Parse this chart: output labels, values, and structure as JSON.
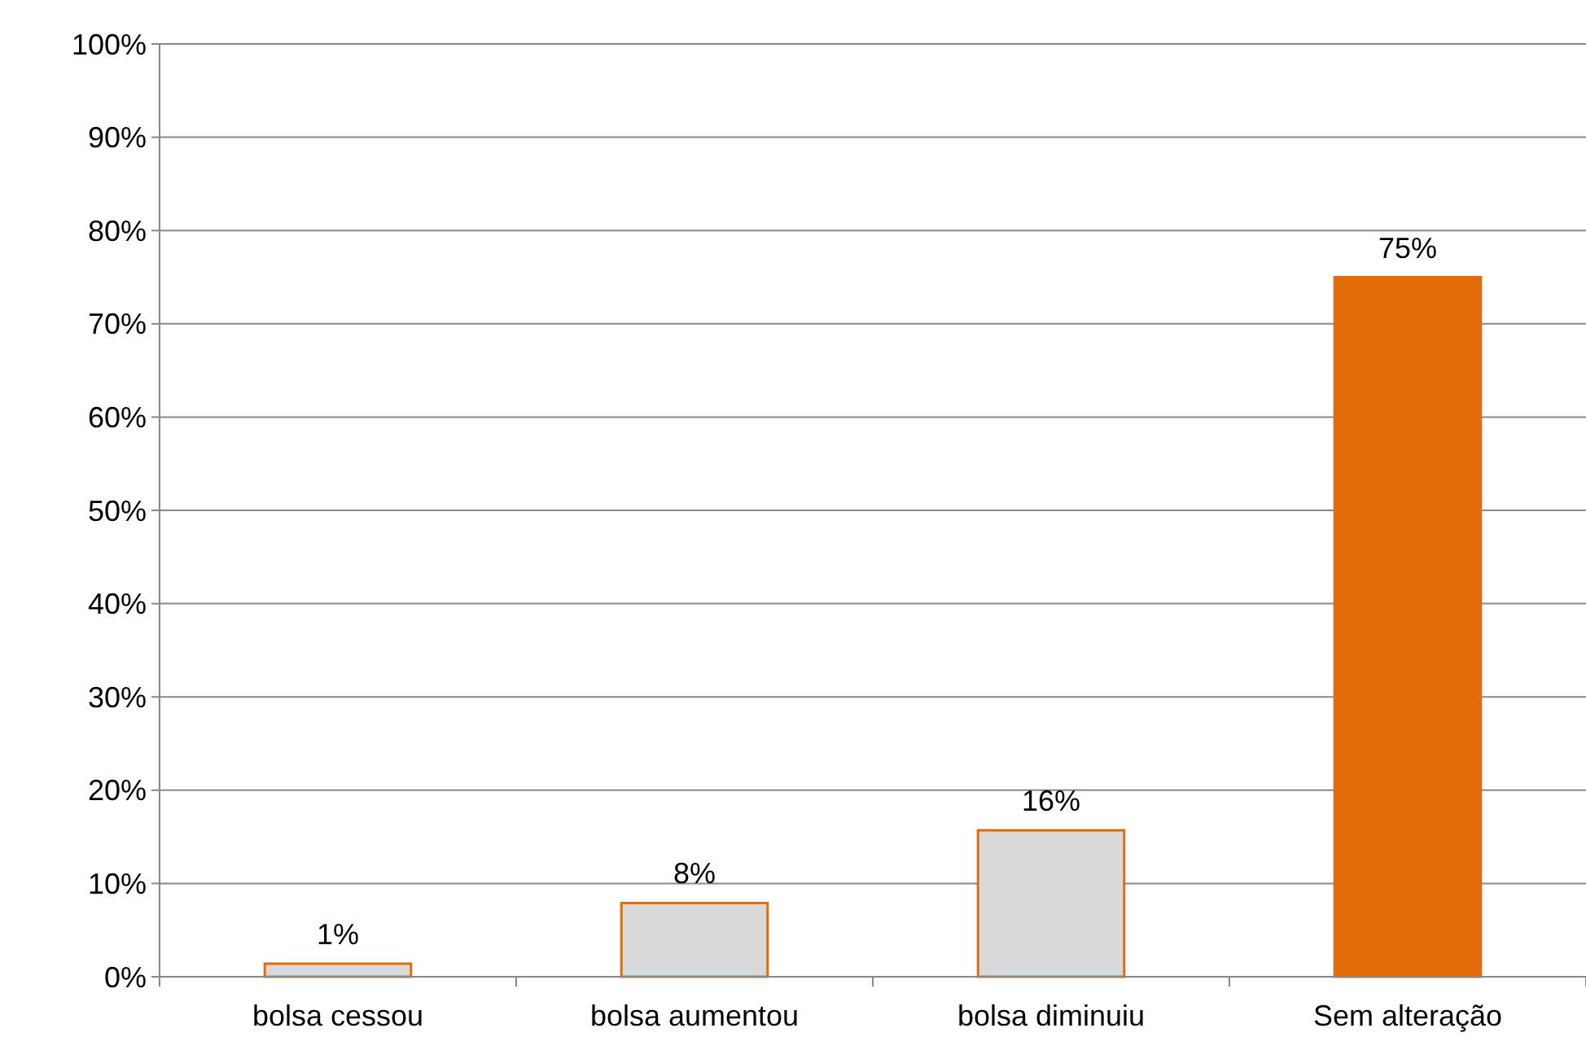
{
  "chart_data": {
    "type": "bar",
    "categories": [
      "bolsa cessou",
      "bolsa aumentou",
      "bolsa diminuiu",
      "Sem alteração"
    ],
    "values": [
      1.4,
      7.9,
      15.7,
      75
    ],
    "colors": [
      "#d9d9d9",
      "#d9d9d9",
      "#d9d9d9",
      "#e36c0a"
    ],
    "value_labels": [
      "1%",
      "8%",
      "16%",
      "75%"
    ],
    "ylim": [
      0,
      100
    ],
    "yticks": [
      {
        "value": 0,
        "label": "0%"
      },
      {
        "value": 10,
        "label": "10%"
      },
      {
        "value": 20,
        "label": "20%"
      },
      {
        "value": 30,
        "label": "30%"
      },
      {
        "value": 40,
        "label": "40%"
      },
      {
        "value": 50,
        "label": "50%"
      },
      {
        "value": 60,
        "label": "60%"
      },
      {
        "value": 70,
        "label": "70%"
      },
      {
        "value": 80,
        "label": "80%"
      },
      {
        "value": 90,
        "label": "90%"
      },
      {
        "value": 100,
        "label": "100%"
      }
    ],
    "grid": "y"
  }
}
